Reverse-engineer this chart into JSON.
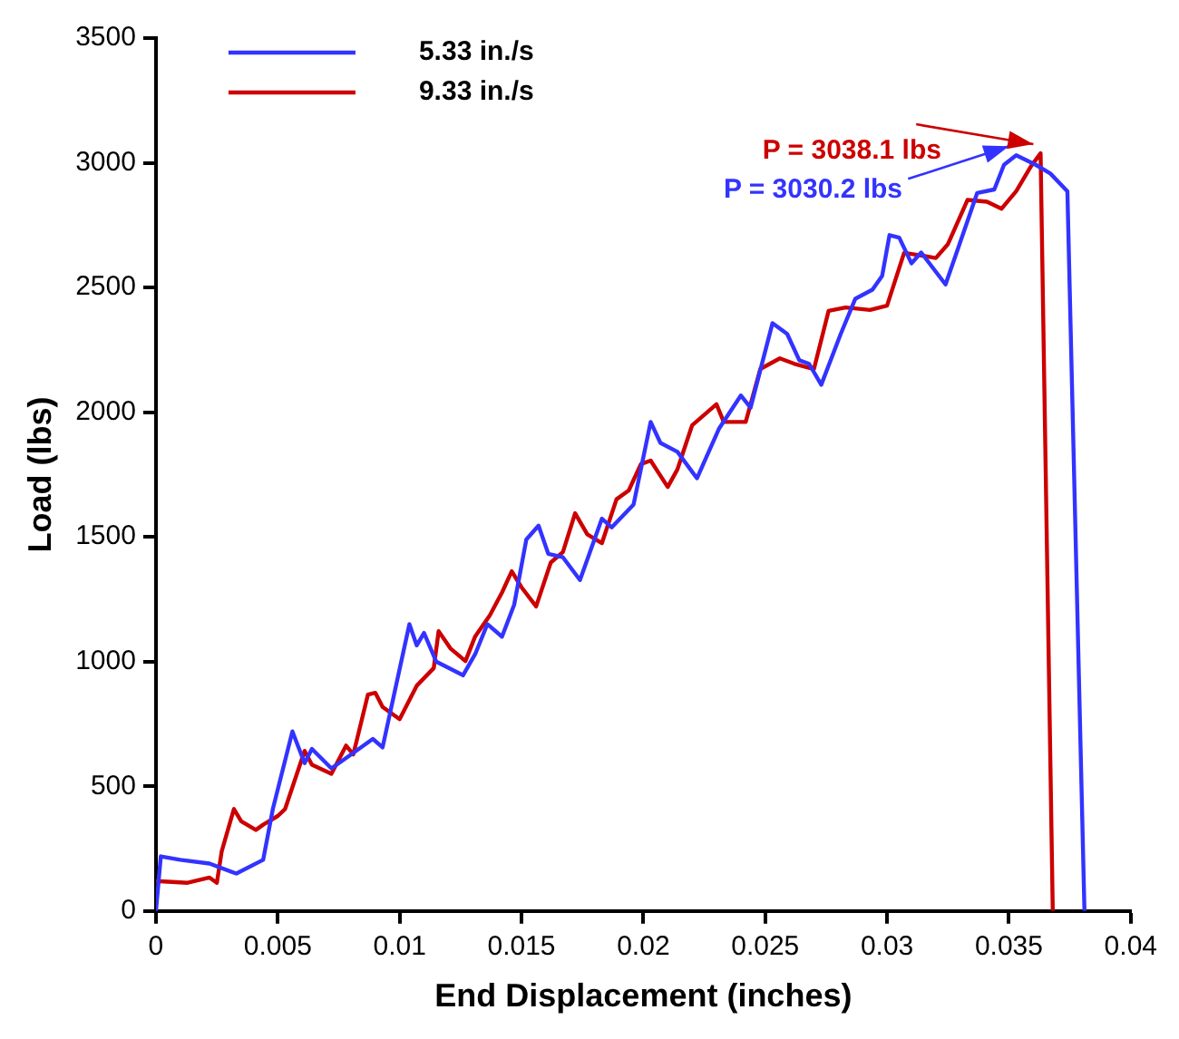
{
  "chart_data": {
    "type": "line",
    "xlabel": "End Displacement (inches)",
    "ylabel": "Load (lbs)",
    "xlim": [
      0,
      0.04
    ],
    "xticks": [
      0,
      0.005,
      0.01,
      0.015,
      0.02,
      0.025,
      0.03,
      0.035,
      0.04
    ],
    "ylim": [
      0,
      3500
    ],
    "yticks": [
      0,
      500,
      1000,
      1500,
      2000,
      2500,
      3000,
      3500
    ],
    "grid": false,
    "legend": "top left",
    "marker": "none",
    "line_style": "solid",
    "annotations": [
      {
        "text": "P = 3030.2 lbs",
        "x": 0.0353,
        "y": 3030
      },
      {
        "text": "P = 3038.1 lbs",
        "x": 0.0363,
        "y": 3038
      }
    ],
    "series": [
      {
        "name": "5.33 in./s",
        "color": "#3333ff",
        "x": [
          0,
          0.0002,
          0.001,
          0.0022,
          0.0033,
          0.0044,
          0.0048,
          0.0056,
          0.0061,
          0.0064,
          0.0072,
          0.0079,
          0.0089,
          0.0093,
          0.0104,
          0.0107,
          0.011,
          0.0115,
          0.0126,
          0.0131,
          0.0136,
          0.0142,
          0.0147,
          0.0152,
          0.0157,
          0.0161,
          0.0167,
          0.0174,
          0.0183,
          0.0187,
          0.0196,
          0.0203,
          0.0207,
          0.0214,
          0.0222,
          0.0231,
          0.024,
          0.0244,
          0.0253,
          0.0259,
          0.0264,
          0.0268,
          0.0273,
          0.0281,
          0.0287,
          0.0294,
          0.0298,
          0.0301,
          0.0305,
          0.031,
          0.0314,
          0.0324,
          0.0329,
          0.0337,
          0.0344,
          0.0348,
          0.0353,
          0.0361,
          0.0367,
          0.0374,
          0.0381
        ],
        "values": [
          0,
          219,
          205,
          190,
          150,
          205,
          410,
          720,
          593,
          650,
          572,
          620,
          690,
          656,
          1150,
          1065,
          1115,
          1000,
          945,
          1030,
          1150,
          1100,
          1228,
          1490,
          1545,
          1432,
          1418,
          1327,
          1573,
          1538,
          1630,
          1961,
          1877,
          1841,
          1735,
          1933,
          2067,
          2018,
          2357,
          2314,
          2208,
          2194,
          2110,
          2314,
          2455,
          2491,
          2547,
          2710,
          2700,
          2597,
          2640,
          2512,
          2653,
          2879,
          2893,
          2992,
          3030,
          2992,
          2957,
          2886,
          0
        ]
      },
      {
        "name": "9.33 in./s",
        "color": "#cc0000",
        "x": [
          0,
          0.0013,
          0.0022,
          0.0025,
          0.0027,
          0.0032,
          0.0035,
          0.0041,
          0.0044,
          0.005,
          0.0053,
          0.0061,
          0.0064,
          0.0072,
          0.0078,
          0.0081,
          0.0087,
          0.009,
          0.0093,
          0.01,
          0.0107,
          0.0114,
          0.0116,
          0.0121,
          0.0127,
          0.0131,
          0.0137,
          0.0142,
          0.0146,
          0.015,
          0.0156,
          0.0162,
          0.0167,
          0.0172,
          0.0177,
          0.0183,
          0.0189,
          0.0194,
          0.0199,
          0.0203,
          0.021,
          0.0214,
          0.022,
          0.023,
          0.0233,
          0.0242,
          0.0248,
          0.0256,
          0.0262,
          0.027,
          0.0276,
          0.0283,
          0.0293,
          0.03,
          0.0307,
          0.0313,
          0.032,
          0.0325,
          0.0333,
          0.0341,
          0.0347,
          0.0353,
          0.0359,
          0.0363,
          0.0368
        ],
        "values": [
          120,
          113,
          134,
          113,
          240,
          409,
          360,
          325,
          346,
          381,
          409,
          642,
          586,
          550,
          663,
          628,
          868,
          875,
          818,
          769,
          903,
          974,
          1122,
          1051,
          1002,
          1101,
          1185,
          1277,
          1362,
          1298,
          1221,
          1397,
          1439,
          1595,
          1510,
          1475,
          1651,
          1686,
          1792,
          1806,
          1700,
          1771,
          1947,
          2032,
          1961,
          1961,
          2173,
          2216,
          2194,
          2173,
          2406,
          2420,
          2410,
          2427,
          2639,
          2630,
          2618,
          2674,
          2851,
          2844,
          2816,
          2886,
          2985,
          3038,
          0
        ]
      }
    ]
  }
}
